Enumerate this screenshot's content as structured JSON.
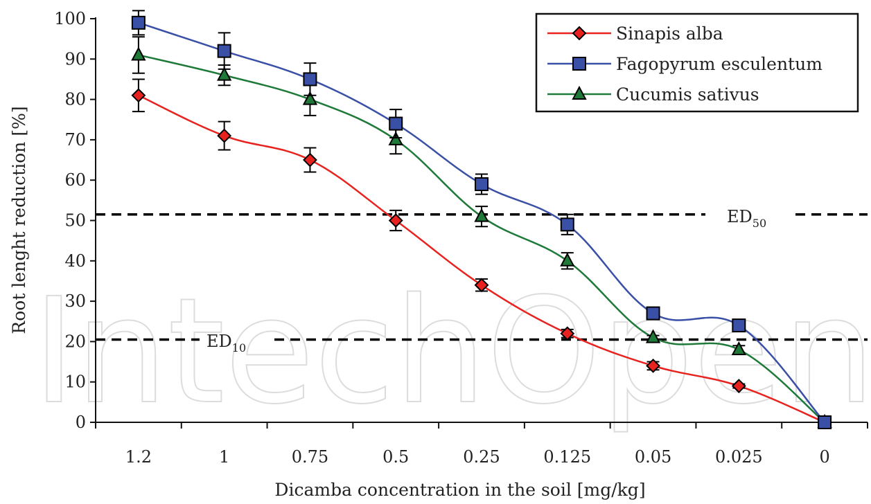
{
  "colors": {
    "sinapis": "#e8231f",
    "fagopyrum": "#3a4fa6",
    "cucumis": "#1f7a3a",
    "axis": "#111111"
  },
  "watermark": "IntechOpen",
  "ed50": {
    "label": "ED",
    "sub": "50"
  },
  "ed10": {
    "label": "ED",
    "sub": "10"
  },
  "chart_data": {
    "type": "line",
    "title": "",
    "xlabel": "Dicamba concentration in the soil [mg/kg]",
    "ylabel": "Root lenght reduction [%]",
    "ylim": [
      0,
      100
    ],
    "yticks": [
      "0",
      "10",
      "20",
      "30",
      "40",
      "50",
      "60",
      "70",
      "80",
      "90",
      "100"
    ],
    "categories": [
      "1.2",
      "1",
      "0.75",
      "0.5",
      "0.25",
      "0.125",
      "0.05",
      "0.025",
      "0"
    ],
    "grid": false,
    "legend_position": "top-right",
    "series": [
      {
        "name": "Sinapis alba",
        "marker": "diamond",
        "values": [
          81,
          71,
          65,
          50,
          34,
          22,
          14,
          9,
          0
        ],
        "errors": [
          4,
          3.5,
          3,
          2.5,
          1.5,
          1,
          1,
          0.5,
          0.5
        ]
      },
      {
        "name": "Fagopyrum esculentum",
        "marker": "square",
        "values": [
          99,
          92,
          85,
          74,
          59,
          49,
          27,
          24,
          0
        ],
        "errors": [
          3,
          4.5,
          4,
          3.5,
          2.5,
          2.5,
          0.5,
          0.5,
          0.5
        ]
      },
      {
        "name": "Cucumis sativus",
        "marker": "triangle",
        "values": [
          91,
          86,
          80,
          70,
          51,
          40,
          21,
          18,
          0
        ],
        "errors": [
          4.5,
          2.5,
          4,
          3.5,
          2.5,
          2,
          0.5,
          1,
          0.5
        ]
      }
    ],
    "reference_lines": [
      {
        "label": "ED50",
        "y": 51.5
      },
      {
        "label": "ED10",
        "y": 20.5
      }
    ]
  }
}
